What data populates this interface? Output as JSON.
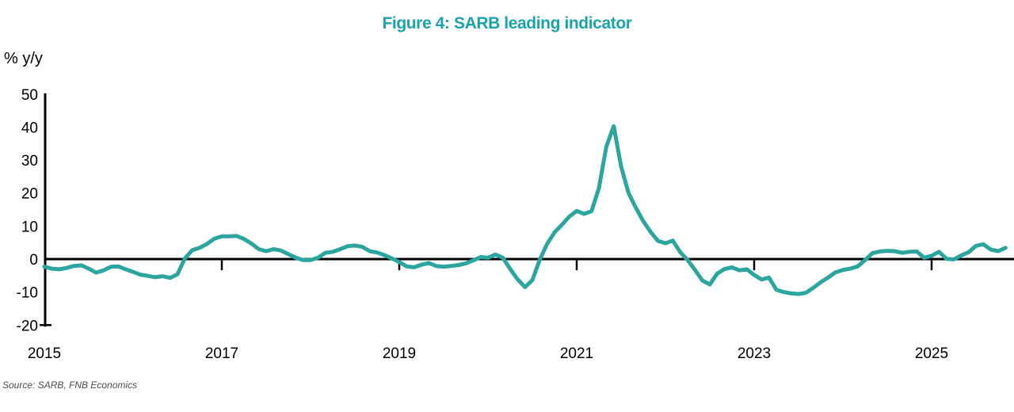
{
  "title": "Figure 4: SARB leading indicator",
  "y_axis_label": "% y/y",
  "source": "Source: SARB, FNB Economics",
  "colors": {
    "title": "#1AA3AC",
    "line": "#2AA69F",
    "axis": "#000000",
    "source_text": "#4d4d4d"
  },
  "chart_data": {
    "type": "line",
    "title": "Figure 4: SARB leading indicator",
    "ylabel": "% y/y",
    "grid": false,
    "legend_position": "none",
    "ylim": [
      -20,
      50
    ],
    "y_ticks": [
      50,
      40,
      30,
      20,
      10,
      0,
      -10,
      -20
    ],
    "x_tick_labels": [
      "2015",
      "2017",
      "2019",
      "2021",
      "2023",
      "2025"
    ],
    "x_start": "2015-01",
    "x_end": "2025-11",
    "frequency": "monthly",
    "series": [
      {
        "name": "SARB leading indicator (% y/y)",
        "values": [
          -2.3,
          -2.9,
          -3.1,
          -2.7,
          -2.1,
          -1.9,
          -2.9,
          -4.1,
          -3.4,
          -2.3,
          -2.2,
          -3.1,
          -3.9,
          -4.7,
          -5.1,
          -5.5,
          -5.2,
          -5.7,
          -4.6,
          0.2,
          2.7,
          3.4,
          4.6,
          6.2,
          6.9,
          6.9,
          7.0,
          6.1,
          4.7,
          3.0,
          2.4,
          3.0,
          2.6,
          1.5,
          0.4,
          -0.3,
          -0.3,
          0.4,
          1.9,
          2.2,
          3.0,
          3.9,
          4.1,
          3.7,
          2.4,
          2.0,
          1.2,
          0.2,
          -0.9,
          -2.2,
          -2.5,
          -1.7,
          -1.2,
          -2.1,
          -2.3,
          -2.1,
          -1.8,
          -1.3,
          -0.4,
          0.6,
          0.4,
          1.4,
          0.4,
          -3.0,
          -6.1,
          -8.5,
          -6.4,
          -0.2,
          4.6,
          8.1,
          10.4,
          12.9,
          14.6,
          13.7,
          14.5,
          21.5,
          34.0,
          40.3,
          28.1,
          20.1,
          15.5,
          11.5,
          8.2,
          5.5,
          4.8,
          5.6,
          2.1,
          -0.3,
          -3.3,
          -6.5,
          -7.7,
          -4.4,
          -3.0,
          -2.5,
          -3.4,
          -3.1,
          -4.8,
          -6.2,
          -5.6,
          -9.3,
          -10.0,
          -10.4,
          -10.6,
          -10.2,
          -8.7,
          -7.0,
          -5.6,
          -4.0,
          -3.3,
          -2.9,
          -2.2,
          -0.3,
          1.8,
          2.3,
          2.5,
          2.4,
          1.9,
          2.2,
          2.3,
          0.4,
          1.0,
          2.2,
          0.1,
          -0.1,
          1.1,
          2.1,
          4.0,
          4.5,
          2.9,
          2.4,
          3.4
        ]
      }
    ]
  }
}
